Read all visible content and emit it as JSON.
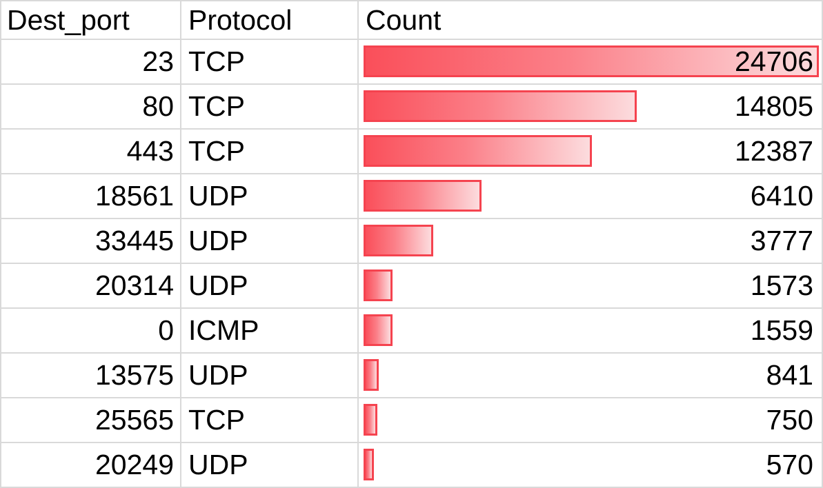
{
  "table": {
    "columns": [
      {
        "key": "dest_port",
        "label": "Dest_port"
      },
      {
        "key": "protocol",
        "label": "Protocol"
      },
      {
        "key": "count",
        "label": "Count"
      }
    ],
    "rows": [
      {
        "dest_port": "23",
        "protocol": "TCP",
        "count": "24706"
      },
      {
        "dest_port": "80",
        "protocol": "TCP",
        "count": "14805"
      },
      {
        "dest_port": "443",
        "protocol": "TCP",
        "count": "12387"
      },
      {
        "dest_port": "18561",
        "protocol": "UDP",
        "count": "6410"
      },
      {
        "dest_port": "33445",
        "protocol": "UDP",
        "count": "3777"
      },
      {
        "dest_port": "20314",
        "protocol": "UDP",
        "count": "1573"
      },
      {
        "dest_port": "0",
        "protocol": "ICMP",
        "count": "1559"
      },
      {
        "dest_port": "13575",
        "protocol": "UDP",
        "count": "841"
      },
      {
        "dest_port": "25565",
        "protocol": "TCP",
        "count": "750"
      },
      {
        "dest_port": "20249",
        "protocol": "UDP",
        "count": "570"
      }
    ]
  },
  "chart_data": {
    "type": "bar",
    "orientation": "horizontal",
    "categories": [
      "23 TCP",
      "80 TCP",
      "443 TCP",
      "18561 UDP",
      "33445 UDP",
      "20314 UDP",
      "0 ICMP",
      "13575 UDP",
      "25565 TCP",
      "20249 UDP"
    ],
    "values": [
      24706,
      14805,
      12387,
      6410,
      3777,
      1573,
      1559,
      841,
      750,
      570
    ],
    "title": "",
    "xlabel": "Count",
    "ylabel": "Dest_port / Protocol",
    "xlim": [
      0,
      24706
    ],
    "legend": false,
    "grid": false
  },
  "colors": {
    "bar_fill_start": "#fa4f5a",
    "bar_fill_end": "#fcdcde",
    "bar_border": "#f5434f",
    "gridline": "#d9d9d9",
    "text": "#000000",
    "background": "#ffffff"
  }
}
